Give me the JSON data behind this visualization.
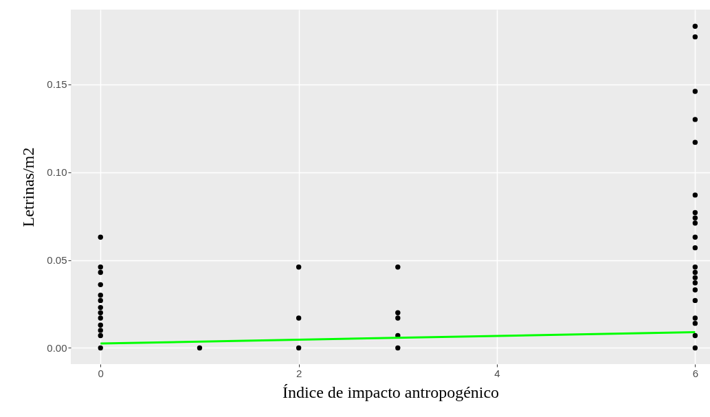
{
  "chart_data": {
    "type": "scatter",
    "xlabel": "Índice de impacto antropogénico",
    "ylabel": "Letrinas/m2",
    "xlim": [
      -0.3,
      6.15
    ],
    "xticks": [
      0,
      2,
      4,
      6
    ],
    "ylim": [
      -0.0092,
      0.1925
    ],
    "yticks": [
      {
        "value": 0,
        "label": "0.00"
      },
      {
        "value": 0.05,
        "label": "0.05"
      },
      {
        "value": 0.1,
        "label": "0.10"
      },
      {
        "value": 0.15,
        "label": "0.15"
      }
    ],
    "grid": true,
    "series": [
      {
        "marker": "circle",
        "color": "#000000",
        "x": [
          0,
          0,
          0,
          0,
          0,
          0,
          0,
          0,
          0,
          0,
          0,
          0,
          0,
          1,
          2,
          2,
          2,
          3,
          3,
          3,
          3,
          3,
          6,
          6,
          6,
          6,
          6,
          6,
          6,
          6,
          6,
          6,
          6,
          6,
          6,
          6,
          6,
          6,
          6,
          6,
          6,
          6,
          6
        ],
        "values": [
          0.063,
          0.046,
          0.043,
          0.036,
          0.03,
          0.027,
          0.023,
          0.02,
          0.017,
          0.013,
          0.01,
          0.007,
          0,
          0,
          0.046,
          0.017,
          0,
          0.046,
          0.02,
          0.017,
          0.007,
          0,
          0.183,
          0.177,
          0.146,
          0.13,
          0.117,
          0.087,
          0.077,
          0.074,
          0.071,
          0.063,
          0.057,
          0.046,
          0.043,
          0.04,
          0.037,
          0.033,
          0.027,
          0.017,
          0.014,
          0.007,
          0
        ]
      },
      {
        "type": "line",
        "color": "#00ff00",
        "x": [
          0,
          6
        ],
        "values": [
          0.0025,
          0.009
        ]
      }
    ]
  }
}
